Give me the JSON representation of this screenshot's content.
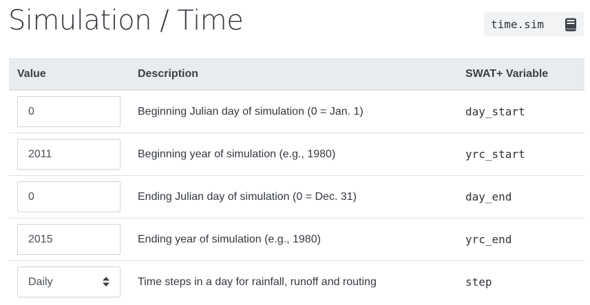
{
  "header": {
    "title": "Simulation / Time",
    "file_name": "time.sim",
    "file_icon": "book-icon"
  },
  "table": {
    "columns": {
      "value": "Value",
      "description": "Description",
      "variable": "SWAT+ Variable"
    },
    "rows": [
      {
        "value": "0",
        "description": "Beginning Julian day of simulation (0 = Jan. 1)",
        "variable": "day_start"
      },
      {
        "value": "2011",
        "description": "Beginning year of simulation (e.g., 1980)",
        "variable": "yrc_start"
      },
      {
        "value": "0",
        "description": "Ending Julian day of simulation (0 = Dec. 31)",
        "variable": "day_end"
      },
      {
        "value": "2015",
        "description": "Ending year of simulation (e.g., 1980)",
        "variable": "yrc_end"
      },
      {
        "value": "Daily",
        "description": "Time steps in a day for rainfall, runoff and routing",
        "variable": "step",
        "caret_icon": "chevron-updown-icon"
      }
    ]
  }
}
